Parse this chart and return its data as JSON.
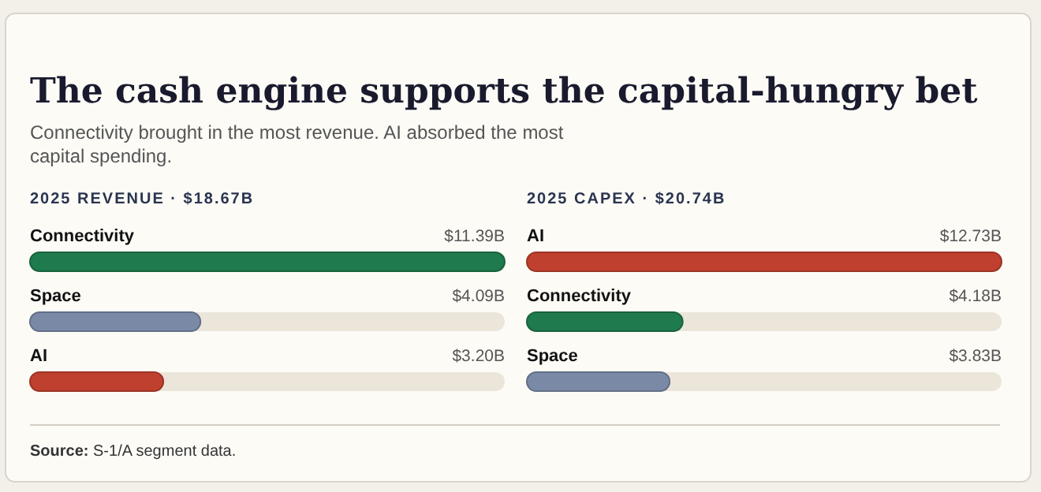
{
  "chart_data": [
    {
      "type": "other",
      "title": "The cash engine supports the capital-hungry bet",
      "subtitle": "Connectivity brought in the most revenue. AI absorbed the most capital spending.",
      "annotations": [
        "Source: S-1/A segment data."
      ]
    },
    {
      "type": "bar",
      "orientation": "horizontal",
      "title": "2025 REVENUE · $18.67B",
      "categories": [
        "Connectivity",
        "Space",
        "AI"
      ],
      "values": [
        11.39,
        4.09,
        3.2
      ],
      "colors": [
        "#1f7a4d",
        "#7a8aa6",
        "#c0402f"
      ],
      "value_labels": [
        "$11.39B",
        "$4.09B",
        "$3.20B"
      ]
    },
    {
      "type": "bar",
      "orientation": "horizontal",
      "title": "2025 CAPEX · $20.74B",
      "categories": [
        "AI",
        "Connectivity",
        "Space"
      ],
      "values": [
        12.73,
        4.18,
        3.83
      ],
      "colors": [
        "#c0402f",
        "#1f7a4d",
        "#7a8aa6"
      ],
      "value_labels": [
        "$12.73B",
        "$4.18B",
        "$3.83B"
      ]
    }
  ]
}
